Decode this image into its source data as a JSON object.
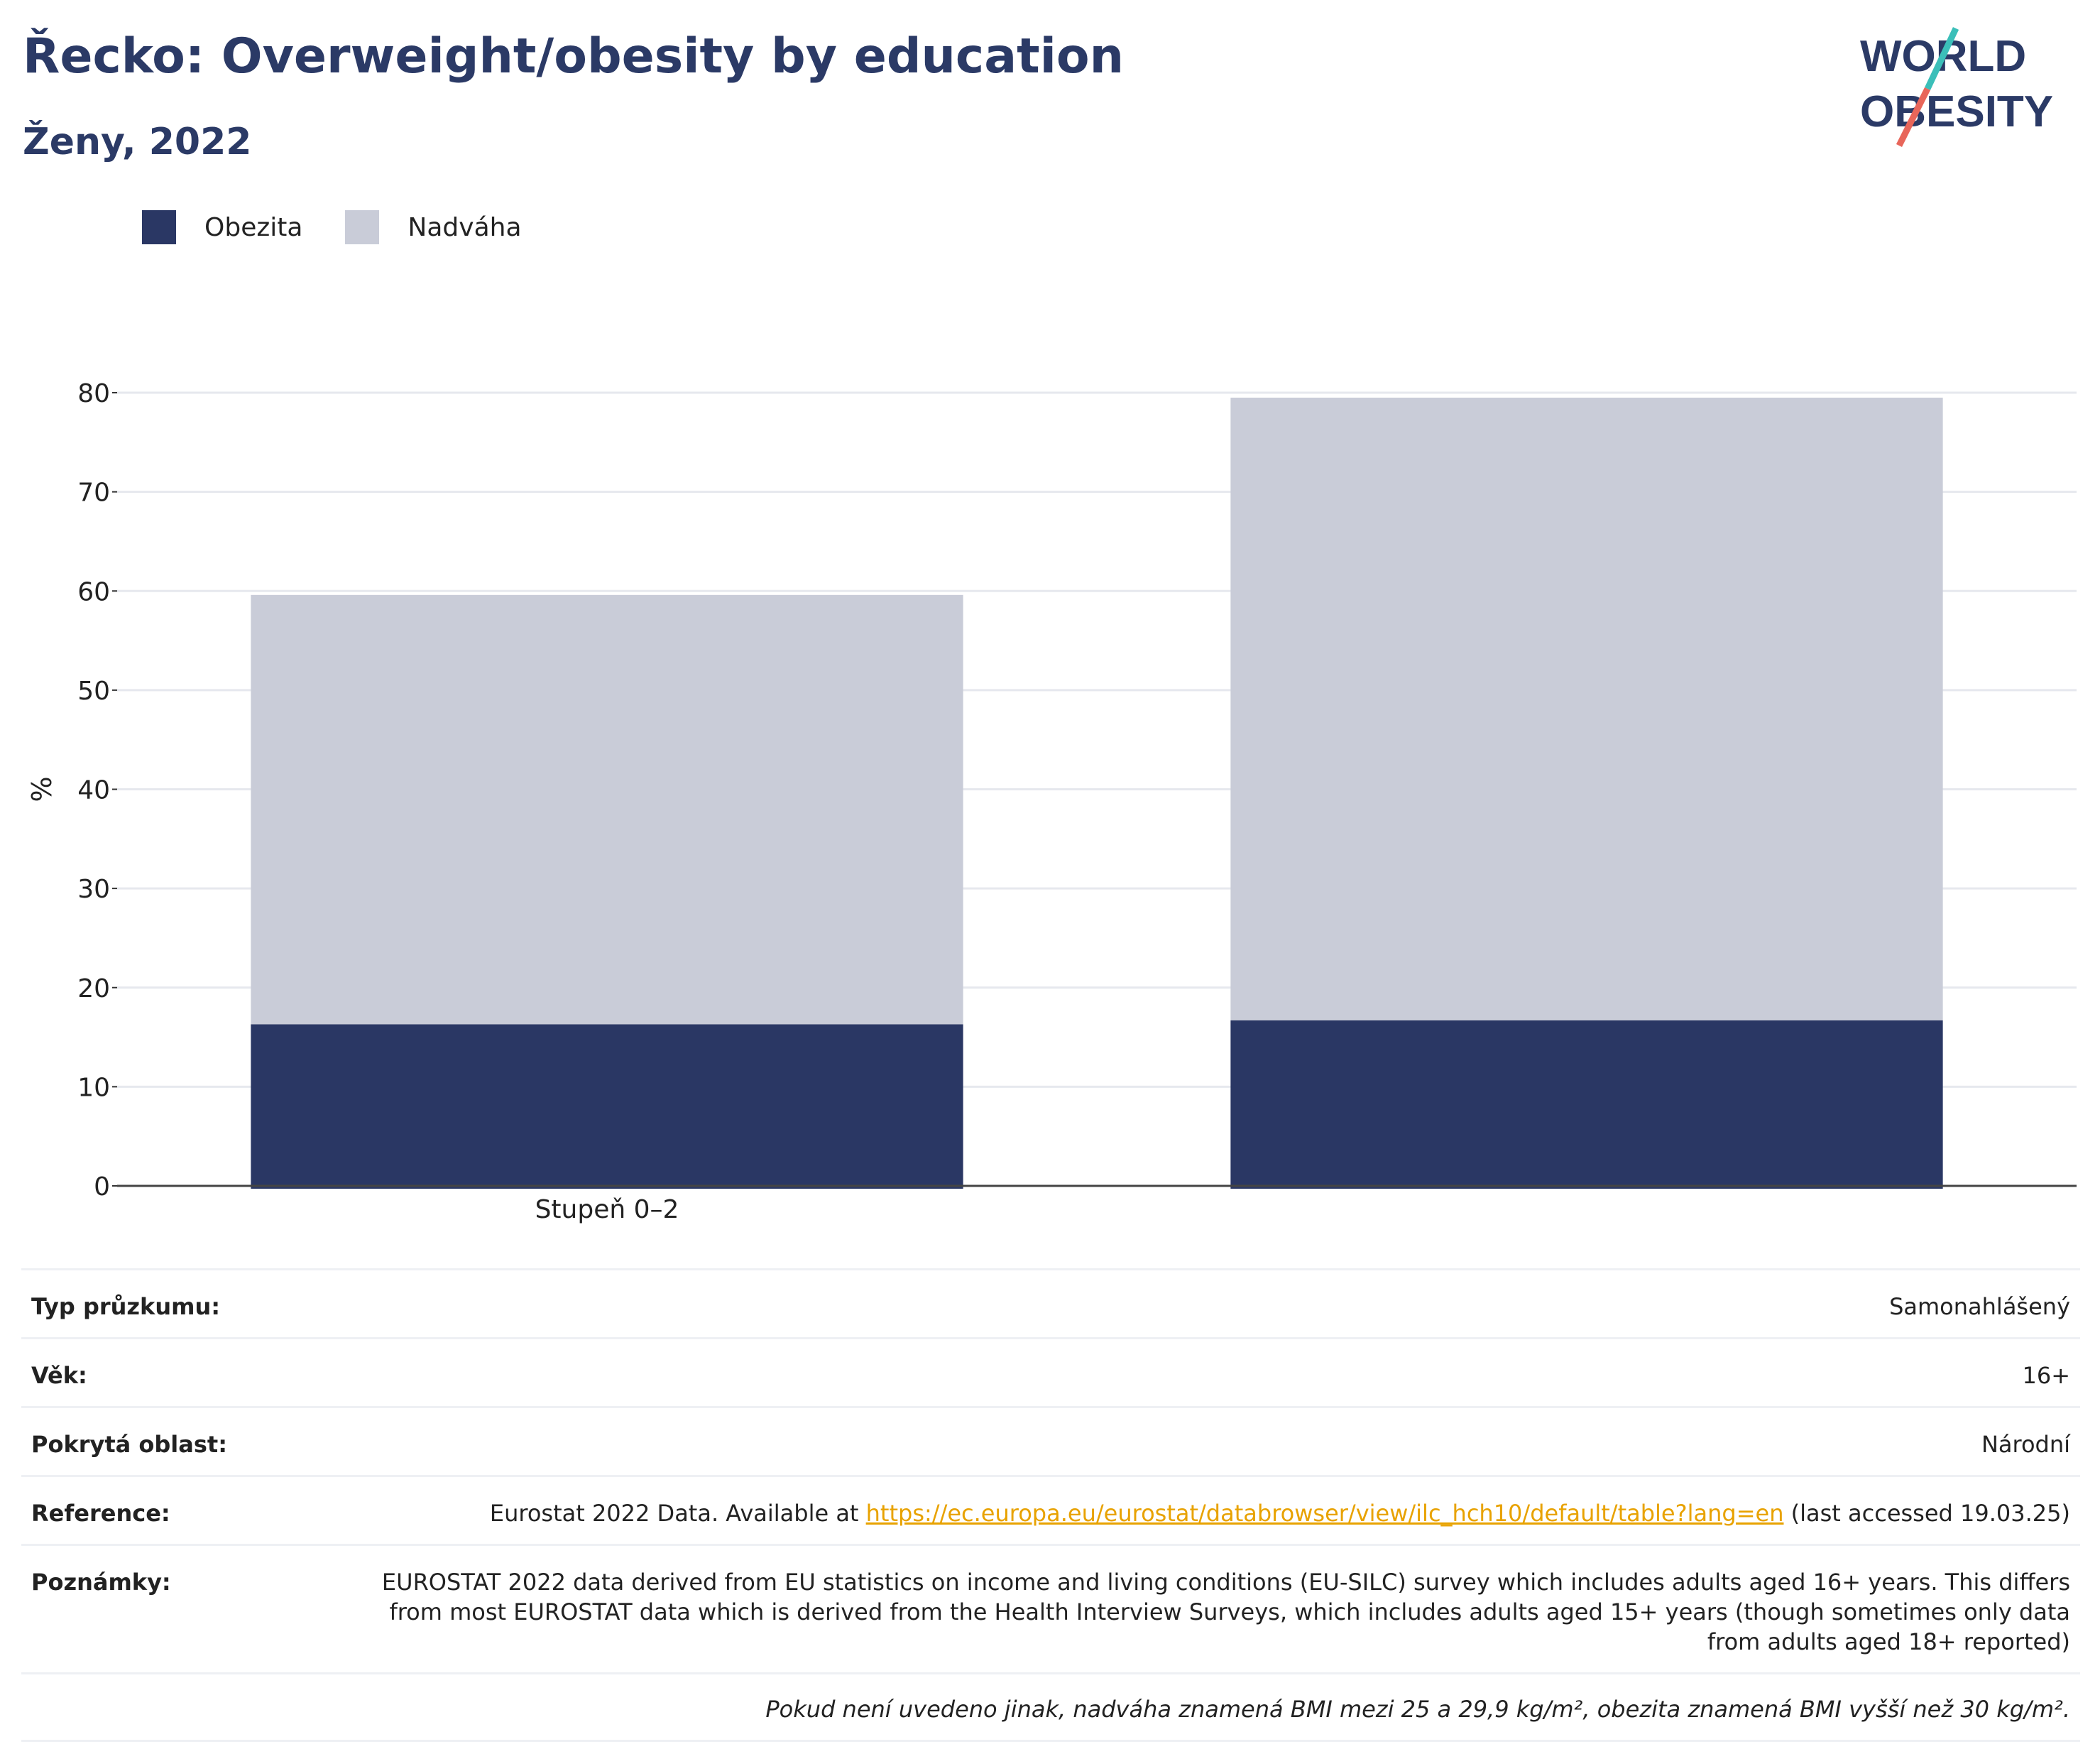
{
  "header": {
    "title": "Řecko: Overweight/obesity by education",
    "subtitle": "Ženy, 2022"
  },
  "logo": {
    "line1": "WORLD",
    "line2": "OBESITY",
    "text": "WORLD OBESITY"
  },
  "legend": [
    {
      "label": "Obezita",
      "color": "#2a3764"
    },
    {
      "label": "Nadváha",
      "color": "#c9ccd8"
    }
  ],
  "chart_data": {
    "type": "bar",
    "stacked": true,
    "categories": [
      "Stupeň 0–2",
      ""
    ],
    "series": [
      {
        "name": "Obezita",
        "color": "#2a3764",
        "values": [
          16.3,
          16.7
        ]
      },
      {
        "name": "Nadváha",
        "color": "#c9ccd8",
        "values": [
          43.3,
          62.8
        ]
      }
    ],
    "ylabel": "%",
    "ylim": [
      0,
      80
    ],
    "yticks": [
      0,
      10,
      20,
      30,
      40,
      50,
      60,
      70,
      80
    ],
    "grid": true,
    "legend_position": "top-left"
  },
  "info": {
    "rows": [
      {
        "label": "Typ průzkumu:",
        "value": "Samonahlášený"
      },
      {
        "label": "Věk:",
        "value": "16+"
      },
      {
        "label": "Pokrytá oblast:",
        "value": "Národní"
      }
    ],
    "reference": {
      "label": "Reference:",
      "prefix": "Eurostat 2022 Data. Available at ",
      "link": "https://ec.europa.eu/eurostat/databrowser/view/ilc_hch10/default/table?lang=en",
      "suffix": " (last accessed 19.03.25)"
    },
    "notes": {
      "label": "Poznámky:",
      "value": "EUROSTAT 2022 data derived from EU statistics on income and living conditions (EU-SILC) survey which includes adults aged 16+ years. This differs from most EUROSTAT data which is derived from the Health Interview Surveys, which includes adults aged 15+ years (though sometimes only data from adults aged 18+ reported)"
    },
    "footnote": "Pokud není uvedeno jinak, nadváha znamená BMI mezi 25 a 29,9 kg/m², obezita znamená BMI vyšší než 30 kg/m²."
  }
}
